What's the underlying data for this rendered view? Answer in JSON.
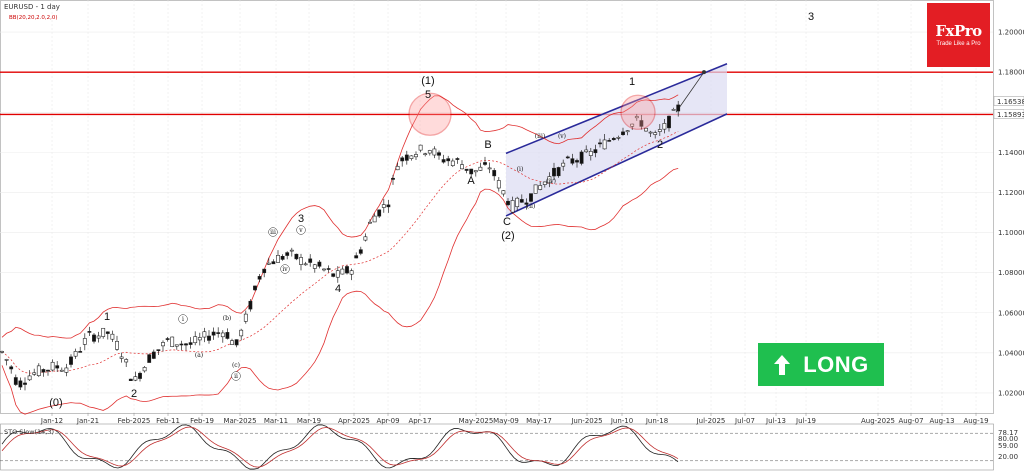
{
  "header": {
    "symbol": "EURUSD - 1 day",
    "indicator": "BB(20,20,2.0,2,0)",
    "corner_label": "3"
  },
  "logo": {
    "brand": "FxPro",
    "tagline": "Trade Like a Pro"
  },
  "badge": {
    "label": "LONG",
    "arrow_icon": "up-arrow-icon"
  },
  "chart_data": {
    "type": "candlestick",
    "price_axis": {
      "ticks": [
        "1.20000",
        "1.18000",
        "1.16000",
        "1.14000",
        "1.12000",
        "1.10000",
        "1.08000",
        "1.06000",
        "1.04000",
        "1.02000"
      ],
      "range": [
        1.01,
        1.216
      ]
    },
    "price_tags": [
      {
        "text": "1.16538",
        "value": 1.16538,
        "style": "outline"
      },
      {
        "text": "1.15893",
        "value": 1.15893,
        "style": "fill"
      }
    ],
    "horizontal_levels": [
      1.18,
      1.1589
    ],
    "date_axis": [
      "Jan-12",
      "Jan-21",
      "Feb-2025",
      "Feb-11",
      "Feb-19",
      "Mar-2025",
      "Mar-11",
      "Mar-19",
      "Apr-2025",
      "Apr-09",
      "Apr-17",
      "May-2025",
      "May-09",
      "May-17",
      "Jun-2025",
      "Jun-10",
      "Jun-18",
      "Jul-2025",
      "Jul-07",
      "Jul-13",
      "Jul-19",
      "Aug-2025",
      "Aug-07",
      "Aug-13",
      "Aug-19"
    ],
    "channel": {
      "upper": [
        [
          1.1395,
          1.1842
        ]
      ],
      "lower": [
        [
          1.1083,
          1.1592
        ]
      ]
    },
    "wave_labels": [
      "(0)",
      "1",
      "2",
      "3",
      "4",
      "(1)",
      "5",
      "A",
      "B",
      "C",
      "(2)",
      "1",
      "2",
      "(a)",
      "(b)",
      "(c)",
      "i",
      "ii",
      "iii",
      "iv",
      "v",
      "(i)",
      "(ii)",
      "(iii)",
      "(iv)",
      "(v)"
    ],
    "stochastic": {
      "name": "STO Slow(14,3)",
      "ticks": [
        "78.17",
        "80.00",
        "59.00",
        "20.00"
      ],
      "range": [
        0,
        100
      ],
      "levels": [
        80,
        20
      ],
      "last_values": [
        78.17,
        59.0
      ]
    }
  }
}
